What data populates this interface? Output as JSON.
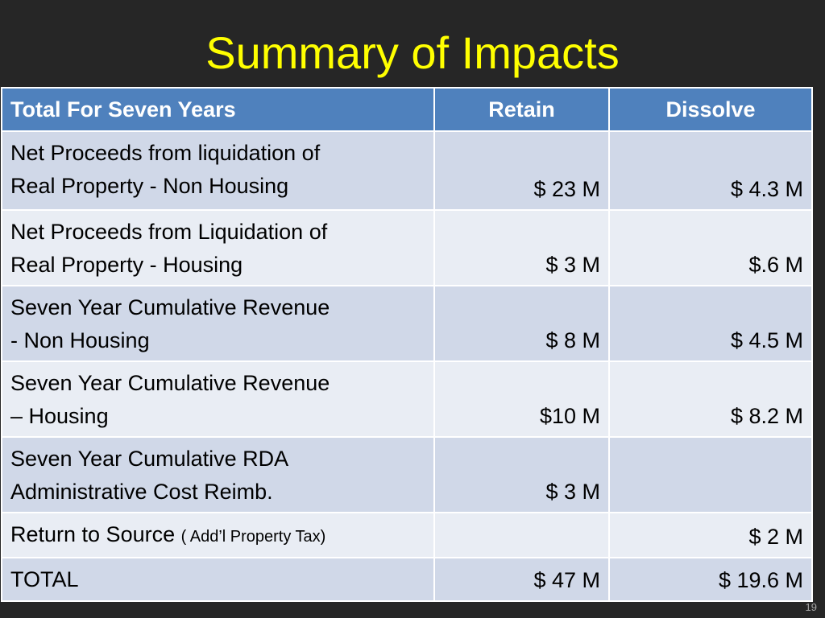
{
  "slide": {
    "title": "Summary of Impacts",
    "page_number": "19"
  },
  "table": {
    "headers": [
      "Total For Seven Years",
      "Retain",
      "Dissolve"
    ],
    "rows": [
      {
        "label_line1": "Net Proceeds from liquidation of",
        "label_line2": "Real Property -  Non Housing",
        "retain": "$ 23 M",
        "dissolve": "$ 4.3 M"
      },
      {
        "label_line1": "Net Proceeds from Liquidation of",
        "label_line2": "Real Property  - Housing",
        "retain": "$ 3 M",
        "dissolve": "$.6 M"
      },
      {
        "label_line1": "Seven Year Cumulative Revenue",
        "label_line2": "- Non Housing",
        "retain": "$ 8 M",
        "dissolve": "$ 4.5 M"
      },
      {
        "label_line1": "Seven Year Cumulative Revenue",
        "label_line2": "– Housing",
        "retain": "$10 M",
        "dissolve": "$ 8.2 M"
      },
      {
        "label_line1": "Seven Year Cumulative RDA",
        "label_line2": "Administrative Cost Reimb.",
        "retain": "$ 3 M",
        "dissolve": ""
      },
      {
        "label": "Return to Source",
        "note": "( Add’l Property Tax)",
        "retain": "",
        "dissolve": "$ 2 M"
      },
      {
        "label": "TOTAL",
        "retain": "$ 47 M",
        "dissolve": "$ 19.6 M"
      }
    ]
  },
  "colors": {
    "background": "#262626",
    "title": "#FFFF00",
    "header_fill": "#4F81BD",
    "row_band_dark": "#D0D8E8",
    "row_band_light": "#E9EDF4"
  }
}
